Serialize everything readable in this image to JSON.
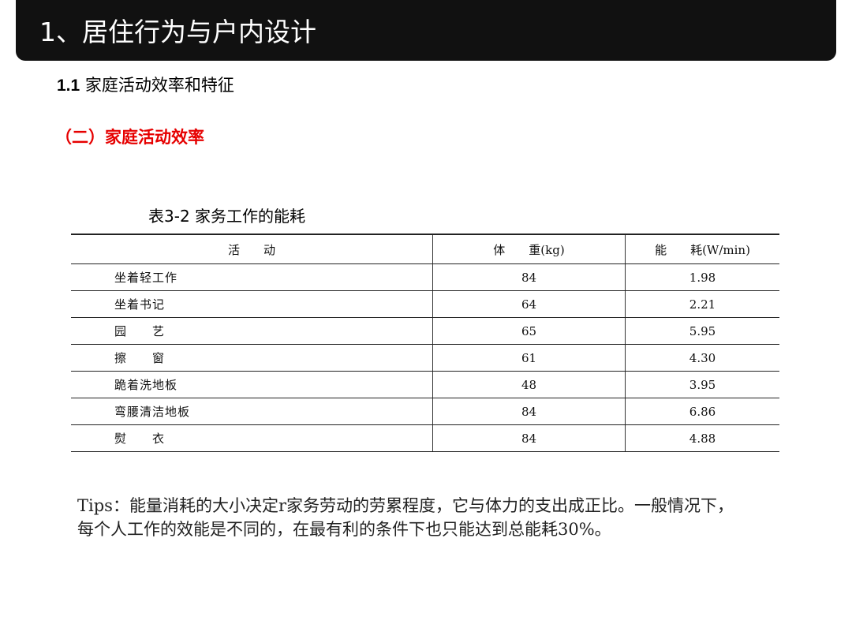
{
  "header": {
    "title": "1、居住行为与户内设计"
  },
  "section": {
    "number": "1.1",
    "title": "家庭活动效率和特征"
  },
  "subsection": {
    "title": "（二）家庭活动效率"
  },
  "table": {
    "caption": "表3-2 家务工作的能耗",
    "columns": [
      "活　　动",
      "体　　重(kg)",
      "能　　耗(W/min)"
    ],
    "rows": [
      [
        "坐着轻工作",
        "84",
        "1.98"
      ],
      [
        "坐着书记",
        "64",
        "2.21"
      ],
      [
        "园　　艺",
        "65",
        "5.95"
      ],
      [
        "擦　　窗",
        "61",
        "4.30"
      ],
      [
        "跪着洗地板",
        "48",
        "3.95"
      ],
      [
        "弯腰清洁地板",
        "84",
        "6.86"
      ],
      [
        "熨　　衣",
        "84",
        "4.88"
      ]
    ]
  },
  "tips": "Tips：能量消耗的大小决定r家务劳动的劳累程度，它与体力的支出成正比。一般情况下，每个人工作的效能是不同的，在最有利的条件下也只能达到总能耗30%。"
}
